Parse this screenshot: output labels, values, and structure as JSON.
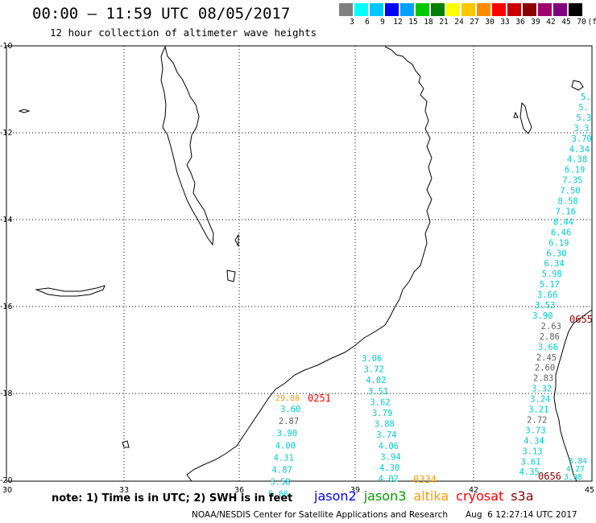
{
  "title": "00:00 – 11:59 UTC 08/05/2017",
  "subtitle": "12 hour collection of altimeter wave heights",
  "scale": {
    "colors": [
      "#808080",
      "#00ffff",
      "#00c8ff",
      "#0000ff",
      "#00a0ff",
      "#00c800",
      "#008000",
      "#ffff00",
      "#ffc800",
      "#ff8c00",
      "#ff0000",
      "#c80000",
      "#8b0000",
      "#a0006e",
      "#800080",
      "#000000"
    ],
    "labels": [
      "3",
      "6",
      "9",
      "12",
      "15",
      "18",
      "21",
      "24",
      "27",
      "30",
      "33",
      "36",
      "39",
      "42",
      "45",
      "70",
      "(ft)"
    ]
  },
  "axes": {
    "lat_labels": [
      "-10",
      "-12",
      "-14",
      "-16",
      "-18",
      "-20"
    ],
    "lon_labels": [
      "30",
      "33",
      "36",
      "39",
      "42",
      "45"
    ]
  },
  "observations": {
    "track_mid_left": {
      "color": "#00e0e0",
      "values": [
        "3.60",
        "2.87",
        "3.90",
        "4.00",
        "4.31",
        "4.87",
        "3.58",
        "6.66"
      ],
      "gray_index": 1
    },
    "label_2986": "29.86",
    "label_0251": "0251",
    "track_center": {
      "values": [
        "3.06",
        "3.72",
        "4.02",
        "3.51",
        "3.62",
        "3.79",
        "3.88",
        "3.74",
        "4.06",
        "3.94",
        "4.30",
        "4.02"
      ]
    },
    "label_0334": "0334",
    "track_right": {
      "values": [
        "5.",
        "5.",
        "5.3",
        "3.3",
        "3.70",
        "4.34",
        "4.38",
        "6.19",
        "7.35",
        "7.50",
        "8.58",
        "7.16",
        "8.44",
        "6.46",
        "6.19",
        "6.30",
        "6.34",
        "5.98",
        "5.17",
        "3.66",
        "3.53",
        "3.90",
        "2.63",
        "2.86",
        "3.66",
        "2.45",
        "2.60",
        "2.83",
        "3.32",
        "3.24",
        "3.21",
        "2.72",
        "3.73",
        "4.34",
        "3.13",
        "3.61",
        "4.35"
      ],
      "gray": [
        "2.63",
        "2.86",
        "2.45",
        "2.60",
        "2.83",
        "2.72"
      ]
    },
    "label_0655": "0655",
    "label_0656": "0656",
    "bottom_right_small": [
      "3.84",
      "4.27",
      "3.98"
    ]
  },
  "note": "note: 1) Time is in UTC; 2) SWH is in feet",
  "legend": [
    {
      "name": "jason2",
      "color": "#0000ff"
    },
    {
      "name": "jason3",
      "color": "#00a000"
    },
    {
      "name": "altika",
      "color": "#ff9900"
    },
    {
      "name": "cryosat",
      "color": "#ff0000"
    },
    {
      "name": "s3a",
      "color": "#8b0000"
    }
  ],
  "credit": "NOAA/NESDIS Center for Satellite Applications and Research",
  "timestamp": "Aug  6 12:27:14 UTC 2017"
}
